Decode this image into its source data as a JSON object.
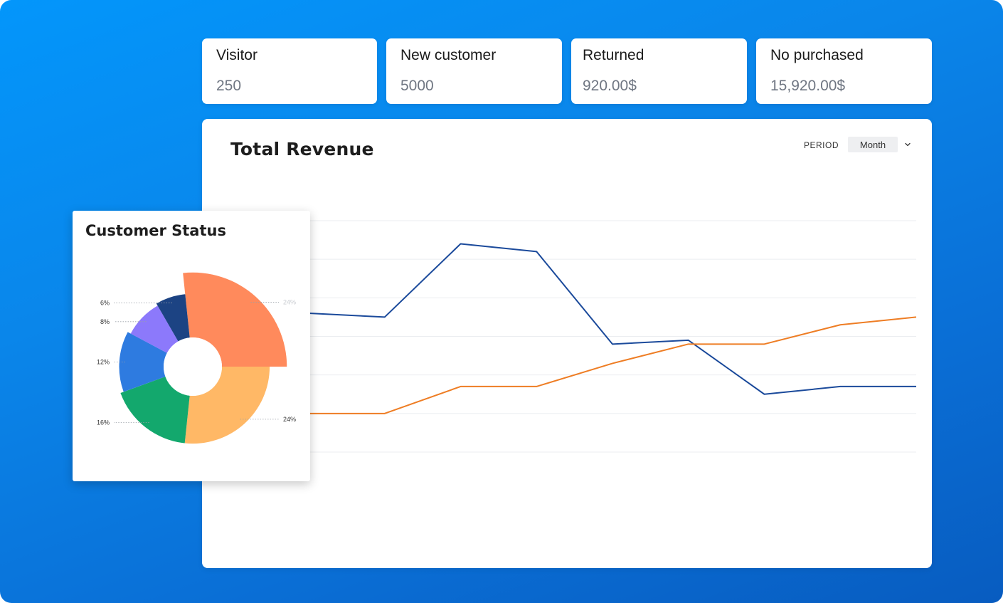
{
  "stats": [
    {
      "title": "Visitor",
      "value": "250"
    },
    {
      "title": "New customer",
      "value": "5000"
    },
    {
      "title": "Returned",
      "value": "920.00$"
    },
    {
      "title": "No purchased",
      "value": "15,920.00$"
    }
  ],
  "revenue": {
    "title": "Total Revenue",
    "period_label": "PERIOD",
    "period_value": "Month"
  },
  "status": {
    "title": "Customer Status"
  },
  "colors": {
    "series_blue": "#1b4a9b",
    "series_orange": "#ee7d24",
    "pie_orange": "#ff8a5c",
    "pie_yellow": "#ffb866",
    "pie_green": "#13a86d",
    "pie_blue": "#2e7be0",
    "pie_purple": "#8c79fb",
    "pie_navy": "#1c4383"
  },
  "chart_data": [
    {
      "type": "line",
      "title": "Total Revenue",
      "x": [
        0,
        1,
        2,
        3,
        4,
        5,
        6,
        7,
        8
      ],
      "series": [
        {
          "values": [
            3.6,
            3.5,
            5.4,
            5.2,
            2.8,
            2.9,
            1.5,
            1.7,
            1.7
          ],
          "color": "#1b4a9b"
        },
        {
          "values": [
            1.0,
            1.0,
            1.7,
            1.7,
            2.3,
            2.8,
            2.8,
            3.3,
            3.5
          ],
          "color": "#ee7d24"
        }
      ],
      "ylim": [
        0,
        6
      ],
      "grid": true
    },
    {
      "type": "pie",
      "title": "Customer Status",
      "slices": [
        {
          "label": "24%",
          "value": 24,
          "color": "#ff8a5c",
          "outer": 1.15
        },
        {
          "label": "24%",
          "value": 24,
          "color": "#ffb866",
          "outer": 0.94
        },
        {
          "label": "16%",
          "value": 16,
          "color": "#13a86d",
          "outer": 0.94
        },
        {
          "label": "12%",
          "value": 12,
          "color": "#2e7be0",
          "outer": 0.9
        },
        {
          "label": "8%",
          "value": 8,
          "color": "#8c79fb",
          "outer": 0.86
        },
        {
          "label": "6%",
          "value": 6,
          "color": "#1c4383",
          "outer": 0.89
        }
      ]
    }
  ]
}
